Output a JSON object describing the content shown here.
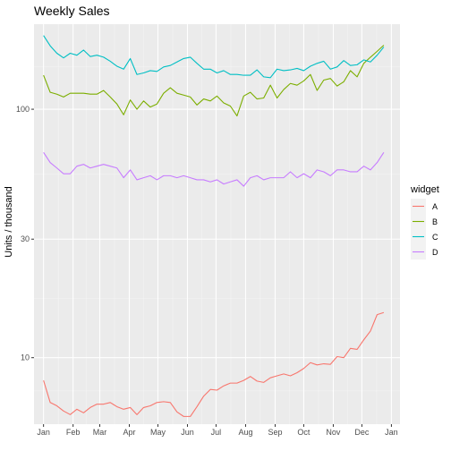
{
  "chart_data": {
    "type": "line",
    "title": "Weekly Sales",
    "xlabel": "",
    "ylabel": "Units / thousand",
    "y_scale": "log",
    "y_ticks": [
      10,
      30,
      100
    ],
    "y_tick_labels": [
      "10",
      "30",
      "100"
    ],
    "ylim": [
      5.4,
      220
    ],
    "x_ticks": [
      "Jan",
      "Feb",
      "Mar",
      "Apr",
      "May",
      "Jun",
      "Jul",
      "Aug",
      "Sep",
      "Oct",
      "Nov",
      "Dec",
      "Jan"
    ],
    "x_tick_dates": [
      "2019-01-01",
      "2019-02-01",
      "2019-03-01",
      "2019-04-01",
      "2019-05-01",
      "2019-06-01",
      "2019-07-01",
      "2019-08-01",
      "2019-09-01",
      "2019-10-01",
      "2019-11-01",
      "2019-12-01",
      "2020-01-01"
    ],
    "xlim": [
      "2018-12-22",
      "2020-01-10"
    ],
    "x": [
      "2019-01-01",
      "2019-01-08",
      "2019-01-15",
      "2019-01-22",
      "2019-01-29",
      "2019-02-05",
      "2019-02-12",
      "2019-02-19",
      "2019-02-26",
      "2019-03-05",
      "2019-03-12",
      "2019-03-19",
      "2019-03-26",
      "2019-04-02",
      "2019-04-09",
      "2019-04-16",
      "2019-04-23",
      "2019-04-30",
      "2019-05-07",
      "2019-05-14",
      "2019-05-21",
      "2019-05-28",
      "2019-06-04",
      "2019-06-11",
      "2019-06-18",
      "2019-06-25",
      "2019-07-02",
      "2019-07-09",
      "2019-07-16",
      "2019-07-23",
      "2019-07-30",
      "2019-08-06",
      "2019-08-13",
      "2019-08-20",
      "2019-08-27",
      "2019-09-03",
      "2019-09-10",
      "2019-09-17",
      "2019-09-24",
      "2019-10-01",
      "2019-10-08",
      "2019-10-15",
      "2019-10-22",
      "2019-10-29",
      "2019-11-05",
      "2019-11-12",
      "2019-11-19",
      "2019-11-26",
      "2019-12-03",
      "2019-12-10",
      "2019-12-17",
      "2019-12-24"
    ],
    "grid": true,
    "legend": {
      "title": "widget",
      "position": "right"
    },
    "series": [
      {
        "name": "A",
        "color": "#F8766D",
        "values": [
          8.1,
          6.6,
          6.4,
          6.1,
          5.9,
          6.2,
          6.0,
          6.3,
          6.5,
          6.5,
          6.6,
          6.35,
          6.2,
          6.3,
          5.9,
          6.3,
          6.4,
          6.6,
          6.65,
          6.6,
          6.05,
          5.8,
          5.8,
          6.35,
          7.0,
          7.45,
          7.4,
          7.7,
          7.9,
          7.9,
          8.1,
          8.4,
          8.05,
          7.95,
          8.3,
          8.45,
          8.6,
          8.45,
          8.7,
          9.05,
          9.55,
          9.35,
          9.45,
          9.4,
          10.1,
          10.0,
          10.9,
          10.8,
          11.8,
          12.8,
          14.9,
          15.2
        ]
      },
      {
        "name": "B",
        "color": "#7CAE00",
        "values": [
          137,
          117,
          115,
          112,
          116,
          116,
          116,
          115,
          115,
          119,
          112,
          105,
          95,
          109,
          100,
          108,
          102,
          105,
          116,
          122,
          116,
          114,
          112,
          104,
          110,
          108,
          113,
          106,
          103,
          94,
          113,
          117,
          110,
          111,
          125,
          111,
          120,
          127,
          125,
          130,
          138,
          119,
          131,
          133,
          124,
          129,
          143,
          135,
          153,
          162,
          171,
          181
        ]
      },
      {
        "name": "C",
        "color": "#00BFC4",
        "values": [
          198,
          180,
          168,
          161,
          168,
          165,
          173,
          163,
          165,
          162,
          156,
          149,
          145,
          160,
          138,
          140,
          143,
          142,
          148,
          150,
          155,
          160,
          162,
          153,
          145,
          145,
          140,
          143,
          138,
          138,
          137,
          137,
          144,
          135,
          134,
          145,
          143,
          144,
          146,
          143,
          149,
          153,
          156,
          145,
          148,
          157,
          150,
          151,
          158,
          155,
          165,
          178
        ]
      },
      {
        "name": "D",
        "color": "#C77CFF",
        "values": [
          67,
          61,
          58,
          55,
          55,
          59,
          60,
          58,
          59,
          60,
          59,
          58,
          53,
          57,
          52,
          53,
          54,
          52,
          54,
          54,
          53,
          54,
          53,
          52,
          52,
          51,
          52,
          50,
          51,
          52,
          49,
          53,
          54,
          52,
          53,
          53,
          53,
          56,
          53,
          55,
          53,
          57,
          56,
          54,
          57,
          57,
          56,
          56,
          59,
          57,
          61,
          67
        ]
      }
    ]
  }
}
